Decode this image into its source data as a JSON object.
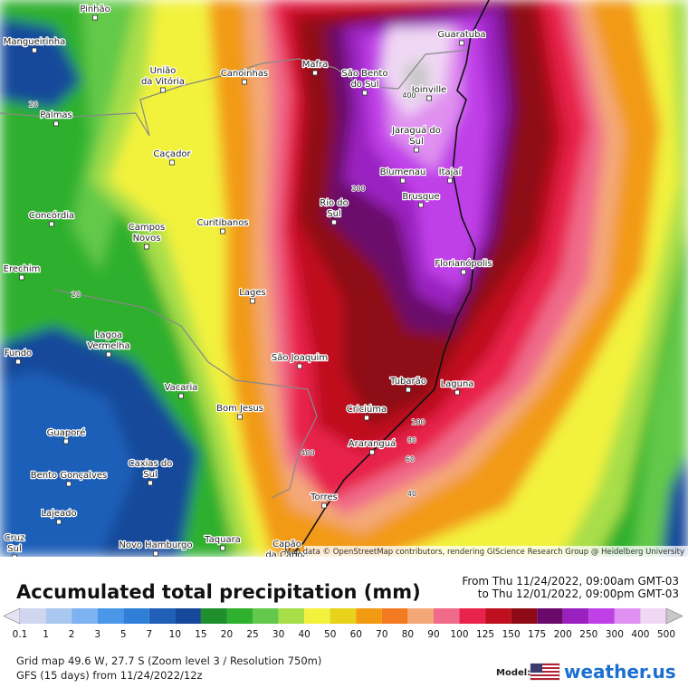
{
  "map": {
    "cities": [
      {
        "name": [
          "Pinhão"
        ]
      },
      {
        "name": [
          "Mangueirinha"
        ]
      },
      {
        "name": [
          "União",
          "da Vitória"
        ]
      },
      {
        "name": [
          "Canoinhas"
        ]
      },
      {
        "name": [
          "Mafra"
        ]
      },
      {
        "name": [
          "São Bento",
          "do Sul"
        ]
      },
      {
        "name": [
          "Joinville"
        ]
      },
      {
        "name": [
          "Guaratuba"
        ]
      },
      {
        "name": [
          "Palmas"
        ]
      },
      {
        "name": [
          "Caçador"
        ]
      },
      {
        "name": [
          "Jaraguá do",
          "Sul"
        ]
      },
      {
        "name": [
          "Blumenau"
        ]
      },
      {
        "name": [
          "Itajaí"
        ]
      },
      {
        "name": [
          "Brusque"
        ]
      },
      {
        "name": [
          "Rio do",
          "Sul"
        ]
      },
      {
        "name": [
          "Concórdia"
        ]
      },
      {
        "name": [
          "Curitibanos"
        ]
      },
      {
        "name": [
          "Campos",
          "Novos"
        ]
      },
      {
        "name": [
          "Erechim"
        ]
      },
      {
        "name": [
          "Florianópolis"
        ]
      },
      {
        "name": [
          "Lages"
        ]
      },
      {
        "name": [
          "Lagoa",
          "Vermelha"
        ]
      },
      {
        "name": [
          "Fundo"
        ]
      },
      {
        "name": [
          "São Joaquim"
        ]
      },
      {
        "name": [
          "Tubarão"
        ]
      },
      {
        "name": [
          "Laguna"
        ]
      },
      {
        "name": [
          "Vacaria"
        ]
      },
      {
        "name": [
          "Bom Jesus"
        ]
      },
      {
        "name": [
          "Criciúma"
        ]
      },
      {
        "name": [
          "Guaporé"
        ]
      },
      {
        "name": [
          "Araranguá"
        ]
      },
      {
        "name": [
          "Caxias do",
          "Sul"
        ]
      },
      {
        "name": [
          "Bento Gonçalves"
        ]
      },
      {
        "name": [
          "Torres"
        ]
      },
      {
        "name": [
          "Lajeado"
        ]
      },
      {
        "name": [
          "Cruz",
          "Sul"
        ]
      },
      {
        "name": [
          "Taquara"
        ]
      },
      {
        "name": [
          "Novo Hamburgo"
        ]
      },
      {
        "name": [
          "Capão",
          "da Canoa"
        ]
      }
    ],
    "contour_labels": [
      "20",
      "20",
      "400",
      "300",
      "100",
      "80",
      "60",
      "40",
      "400"
    ],
    "attribution": "Map data © OpenStreetMap contributors, rendering GIScience Research Group @ Heidelberg University"
  },
  "footer": {
    "title": "Accumulated total precipitation (mm)",
    "period_from": "From Thu 11/24/2022, 09:00am GMT-03",
    "period_to": "to Thu 12/01/2022, 09:00pm GMT-03",
    "legend": {
      "values": [
        0.1,
        1,
        2,
        3,
        5,
        7,
        10,
        15,
        20,
        25,
        30,
        40,
        50,
        60,
        70,
        80,
        90,
        100,
        125,
        150,
        175,
        200,
        250,
        300,
        400,
        500
      ],
      "colors": [
        "#e4e4f2",
        "#cfd6ee",
        "#a9c8f0",
        "#7cb3f0",
        "#4a97ea",
        "#2f7fd8",
        "#1f5fb8",
        "#15489a",
        "#1f8f2e",
        "#2fb02f",
        "#63c94a",
        "#a8de48",
        "#f2f23c",
        "#e8d21a",
        "#f29a12",
        "#f47a22",
        "#f4a878",
        "#f06a8a",
        "#e8244c",
        "#c00f1e",
        "#8e0a14",
        "#6a0a6a",
        "#9a20c0",
        "#c040e8",
        "#e090f0",
        "#f0d8f4",
        "#c8c8c8"
      ]
    },
    "grid_info": "Grid map 49.6 W, 27.7 S (Zoom level 3 / Resolution 750m)",
    "model_info": "GFS (15 days) from  11/24/2022/12z",
    "model_label": "Model:",
    "brand": "weather.us"
  }
}
